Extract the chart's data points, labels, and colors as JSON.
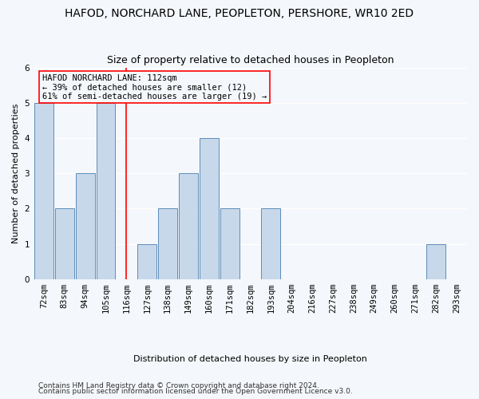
{
  "title": "HAFOD, NORCHARD LANE, PEOPLETON, PERSHORE, WR10 2ED",
  "subtitle": "Size of property relative to detached houses in Peopleton",
  "xlabel_bottom": "Distribution of detached houses by size in Peopleton",
  "ylabel": "Number of detached properties",
  "categories": [
    "72sqm",
    "83sqm",
    "94sqm",
    "105sqm",
    "116sqm",
    "127sqm",
    "138sqm",
    "149sqm",
    "160sqm",
    "171sqm",
    "182sqm",
    "193sqm",
    "204sqm",
    "216sqm",
    "227sqm",
    "238sqm",
    "249sqm",
    "260sqm",
    "271sqm",
    "282sqm",
    "293sqm"
  ],
  "values": [
    5,
    2,
    3,
    5,
    0,
    1,
    2,
    3,
    4,
    2,
    0,
    2,
    0,
    0,
    0,
    0,
    0,
    0,
    0,
    1,
    0
  ],
  "bar_color": "#c8d8eb",
  "bar_edge_color": "#5b8db8",
  "red_line_index": 4,
  "ylim": [
    0,
    6
  ],
  "yticks": [
    0,
    1,
    2,
    3,
    4,
    5,
    6
  ],
  "annotation_title": "HAFOD NORCHARD LANE: 112sqm",
  "annotation_line1": "← 39% of detached houses are smaller (12)",
  "annotation_line2": "61% of semi-detached houses are larger (19) →",
  "footer1": "Contains HM Land Registry data © Crown copyright and database right 2024.",
  "footer2": "Contains public sector information licensed under the Open Government Licence v3.0.",
  "bg_color": "#f4f7fb",
  "grid_color": "#ffffff",
  "title_fontsize": 10,
  "subtitle_fontsize": 9,
  "axis_label_fontsize": 8,
  "tick_fontsize": 7.5,
  "annotation_fontsize": 7.5,
  "footer_fontsize": 6.5
}
